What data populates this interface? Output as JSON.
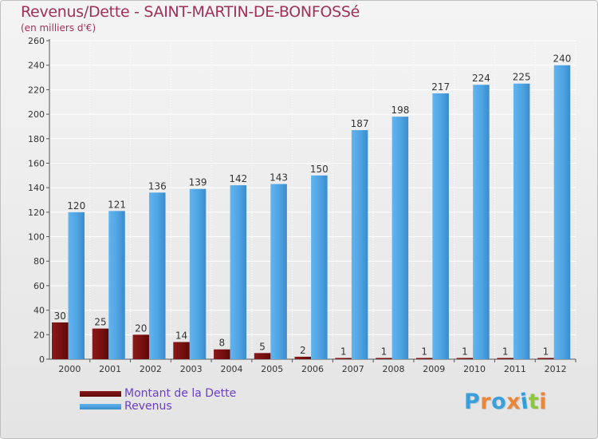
{
  "title": "Revenus/Dette - SAINT-MARTIN-DE-BONFOSSé",
  "unit_label": "(en milliers d'€)",
  "logo": {
    "text": "Proxiti",
    "colors": [
      "#3aa0dc",
      "#e8873a",
      "#3aa0dc",
      "#e8873a",
      "#2e9fd8",
      "#8cc63f",
      "#e8873a"
    ]
  },
  "legend": [
    {
      "label": "Montant de la Dette",
      "color": "#7a1010"
    },
    {
      "label": "Revenus",
      "color": "#4ea3e2"
    }
  ],
  "chart_data": {
    "type": "bar",
    "title": "Revenus/Dette - SAINT-MARTIN-DE-BONFOSSé",
    "ylabel": "(en milliers d'€)",
    "xlabel": "",
    "ylim": [
      0,
      260
    ],
    "yticks": [
      0,
      20,
      40,
      60,
      80,
      100,
      120,
      140,
      160,
      180,
      200,
      220,
      240,
      260
    ],
    "categories": [
      "2000",
      "2001",
      "2002",
      "2003",
      "2004",
      "2005",
      "2006",
      "2007",
      "2008",
      "2009",
      "2010",
      "2011",
      "2012"
    ],
    "series": [
      {
        "name": "Montant de la Dette",
        "color": "#7a1010",
        "values": [
          30,
          25,
          20,
          14,
          8,
          5,
          2,
          1,
          1,
          1,
          1,
          1,
          1
        ]
      },
      {
        "name": "Revenus",
        "color": "#4ea3e2",
        "values": [
          120,
          121,
          136,
          139,
          142,
          143,
          150,
          187,
          198,
          217,
          224,
          225,
          240
        ]
      }
    ],
    "grid": true,
    "legend_position": "bottom-left"
  }
}
